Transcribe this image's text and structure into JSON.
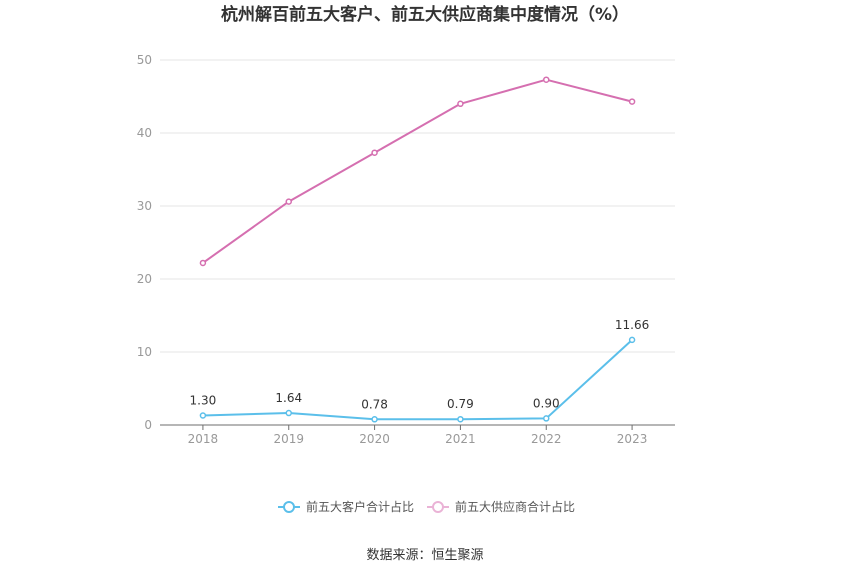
{
  "chart_data": {
    "type": "line",
    "title": "杭州解百前五大客户、前五大供应商集中度情况（%）",
    "categories": [
      "2018",
      "2019",
      "2020",
      "2021",
      "2022",
      "2023"
    ],
    "ylim": [
      0,
      50
    ],
    "yticks": [
      0,
      10,
      20,
      30,
      40,
      50
    ],
    "grid": true,
    "legend_position": "bottom",
    "series": [
      {
        "name": "前五大客户合计占比",
        "color": "#5bbfea",
        "values": [
          1.3,
          1.64,
          0.78,
          0.79,
          0.9,
          11.66
        ],
        "labels": [
          "1.30",
          "1.64",
          "0.78",
          "0.79",
          "0.90",
          "11.66"
        ]
      },
      {
        "name": "前五大供应商合计占比",
        "color": "#d56fb0",
        "values": [
          22.2,
          30.6,
          37.3,
          44.0,
          47.3,
          44.3
        ]
      }
    ]
  },
  "source": "数据来源：恒生聚源"
}
